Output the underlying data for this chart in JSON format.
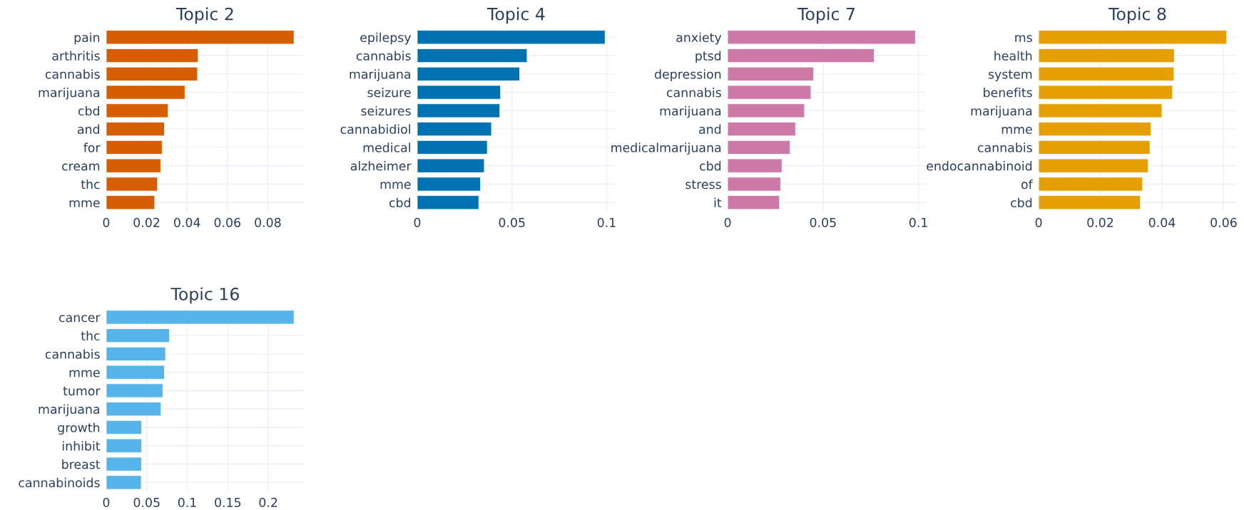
{
  "chart_data": [
    {
      "type": "bar",
      "orientation": "horizontal",
      "title": "Topic 2",
      "categories": [
        "pain",
        "arthritis",
        "cannabis",
        "marijuana",
        "cbd",
        "and",
        "for",
        "cream",
        "thc",
        "mme"
      ],
      "values": [
        0.093,
        0.0455,
        0.0452,
        0.039,
        0.0306,
        0.0288,
        0.0277,
        0.027,
        0.0254,
        0.024
      ],
      "color": "#d55e00",
      "xlim": [
        0,
        0.0982
      ],
      "xticks": [
        0,
        0.02,
        0.04,
        0.06,
        0.08
      ],
      "grid": true
    },
    {
      "type": "bar",
      "orientation": "horizontal",
      "title": "Topic 4",
      "categories": [
        "epilepsy",
        "cannabis",
        "marijuana",
        "seizure",
        "seizures",
        "cannabidiol",
        "medical",
        "alzheimer",
        "mme",
        "cbd"
      ],
      "values": [
        0.0992,
        0.058,
        0.0541,
        0.044,
        0.0436,
        0.0392,
        0.037,
        0.0354,
        0.0334,
        0.0325
      ],
      "color": "#0072b2",
      "xlim": [
        0,
        0.1047
      ],
      "xticks": [
        0,
        0.05,
        0.1
      ],
      "grid": true
    },
    {
      "type": "bar",
      "orientation": "horizontal",
      "title": "Topic 7",
      "categories": [
        "anxiety",
        "ptsd",
        "depression",
        "cannabis",
        "marijuana",
        "and",
        "medicalmarijuana",
        "cbd",
        "stress",
        "it"
      ],
      "values": [
        0.0984,
        0.0768,
        0.0451,
        0.0437,
        0.0403,
        0.0356,
        0.0327,
        0.0285,
        0.0278,
        0.0272
      ],
      "color": "#cc79a7",
      "xlim": [
        0,
        0.1039
      ],
      "xticks": [
        0,
        0.05,
        0.1
      ],
      "grid": true
    },
    {
      "type": "bar",
      "orientation": "horizontal",
      "title": "Topic 8",
      "categories": [
        "ms",
        "health",
        "system",
        "benefits",
        "marijuana",
        "mme",
        "cannabis",
        "endocannabinoid",
        "of",
        "cbd"
      ],
      "values": [
        0.061,
        0.044,
        0.0439,
        0.0434,
        0.04,
        0.0364,
        0.0361,
        0.0355,
        0.0337,
        0.033
      ],
      "color": "#e69f00",
      "xlim": [
        0,
        0.0643
      ],
      "xticks": [
        0,
        0.02,
        0.04,
        0.06
      ],
      "grid": true
    },
    {
      "type": "bar",
      "orientation": "horizontal",
      "title": "Topic 16",
      "categories": [
        "cancer",
        "thc",
        "cannabis",
        "mme",
        "tumor",
        "marijuana",
        "growth",
        "inhibit",
        "breast",
        "cannabinoids"
      ],
      "values": [
        0.2318,
        0.078,
        0.0732,
        0.0718,
        0.07,
        0.0676,
        0.0438,
        0.0438,
        0.0435,
        0.0432
      ],
      "color": "#56b4e9",
      "xlim": [
        0,
        0.2447
      ],
      "xticks": [
        0,
        0.05,
        0.1,
        0.15,
        0.2
      ],
      "grid": true
    }
  ]
}
